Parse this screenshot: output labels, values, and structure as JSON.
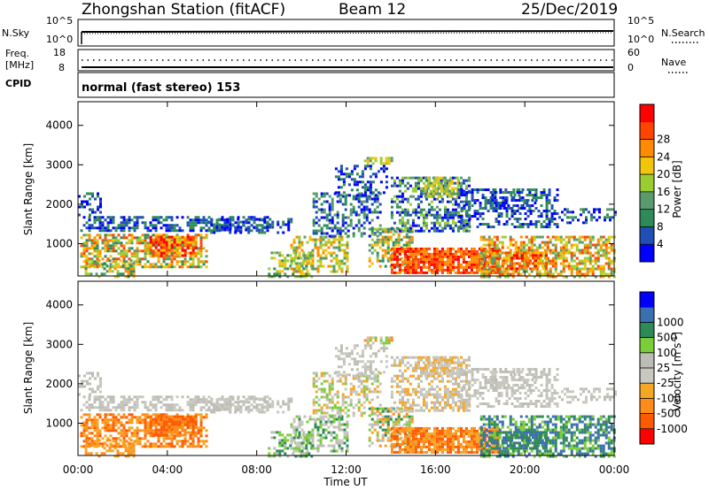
{
  "header": {
    "station": "Zhongshan Station (fitACF)",
    "beam": "Beam 12",
    "date": "25/Dec/2019"
  },
  "panels": {
    "noise": {
      "left_label": "N.Sky",
      "left_ticks": [
        "10^5",
        "10^0"
      ],
      "right_label": "N.Search",
      "right_ticks": [
        "10^5",
        "10^0"
      ]
    },
    "freq": {
      "left_label_1": "Freq.",
      "left_label_2": "[MHz]",
      "left_ticks": [
        "18",
        "8"
      ],
      "right_label": "Nave",
      "right_ticks": [
        "60",
        "0"
      ]
    },
    "cpid": {
      "label": "CPID",
      "text": "normal (fast stereo) 153"
    }
  },
  "colors": {
    "power": [
      "#0000ff",
      "#1f4fb4",
      "#2e8b57",
      "#5a9b6e",
      "#9acd32",
      "#f2c40c",
      "#ff8c00",
      "#ff4500",
      "#ff0000"
    ],
    "velocity": [
      "#ff0000",
      "#ff5a00",
      "#ff8c1a",
      "#f5a623",
      "#c8c8c0",
      "#bdbdb5",
      "#7ccd3a",
      "#2e8b57",
      "#3a6fb0",
      "#0000ff"
    ],
    "frame": "#000000"
  },
  "chart_data": [
    {
      "type": "heatmap",
      "name": "power",
      "ylabel": "Slant Range [km]",
      "xlabel": "",
      "x_ticks": [
        "00:00",
        "04:00",
        "08:00",
        "12:00",
        "16:00",
        "20:00",
        "00:00"
      ],
      "x_range_hours": [
        0,
        24
      ],
      "y_ticks": [
        "1000",
        "2000",
        "3000",
        "4000"
      ],
      "y_tick_values": [
        1000,
        2000,
        3000,
        4000
      ],
      "ylim": [
        180,
        4600
      ],
      "colorbar_label": "Power [dB]",
      "colorbar_ticks": [
        "4",
        "8",
        "12",
        "16",
        "20",
        "24",
        "28"
      ],
      "colorbar_range": [
        0,
        30
      ]
    },
    {
      "type": "heatmap",
      "name": "velocity",
      "ylabel": "Slant Range [km]",
      "xlabel": "Time UT",
      "x_ticks": [
        "00:00",
        "04:00",
        "08:00",
        "12:00",
        "16:00",
        "20:00",
        "00:00"
      ],
      "x_range_hours": [
        0,
        24
      ],
      "y_ticks": [
        "1000",
        "2000",
        "3000",
        "4000"
      ],
      "y_tick_values": [
        1000,
        2000,
        3000,
        4000
      ],
      "ylim": [
        180,
        4600
      ],
      "colorbar_label": "Velocity [m s",
      "colorbar_label_sup": "-1",
      "colorbar_label_end": "]",
      "colorbar_ticks": [
        "1000",
        "500",
        "100",
        "25",
        "-25",
        "-100",
        "-500",
        "-1000"
      ]
    }
  ],
  "time_label": "Time UT"
}
